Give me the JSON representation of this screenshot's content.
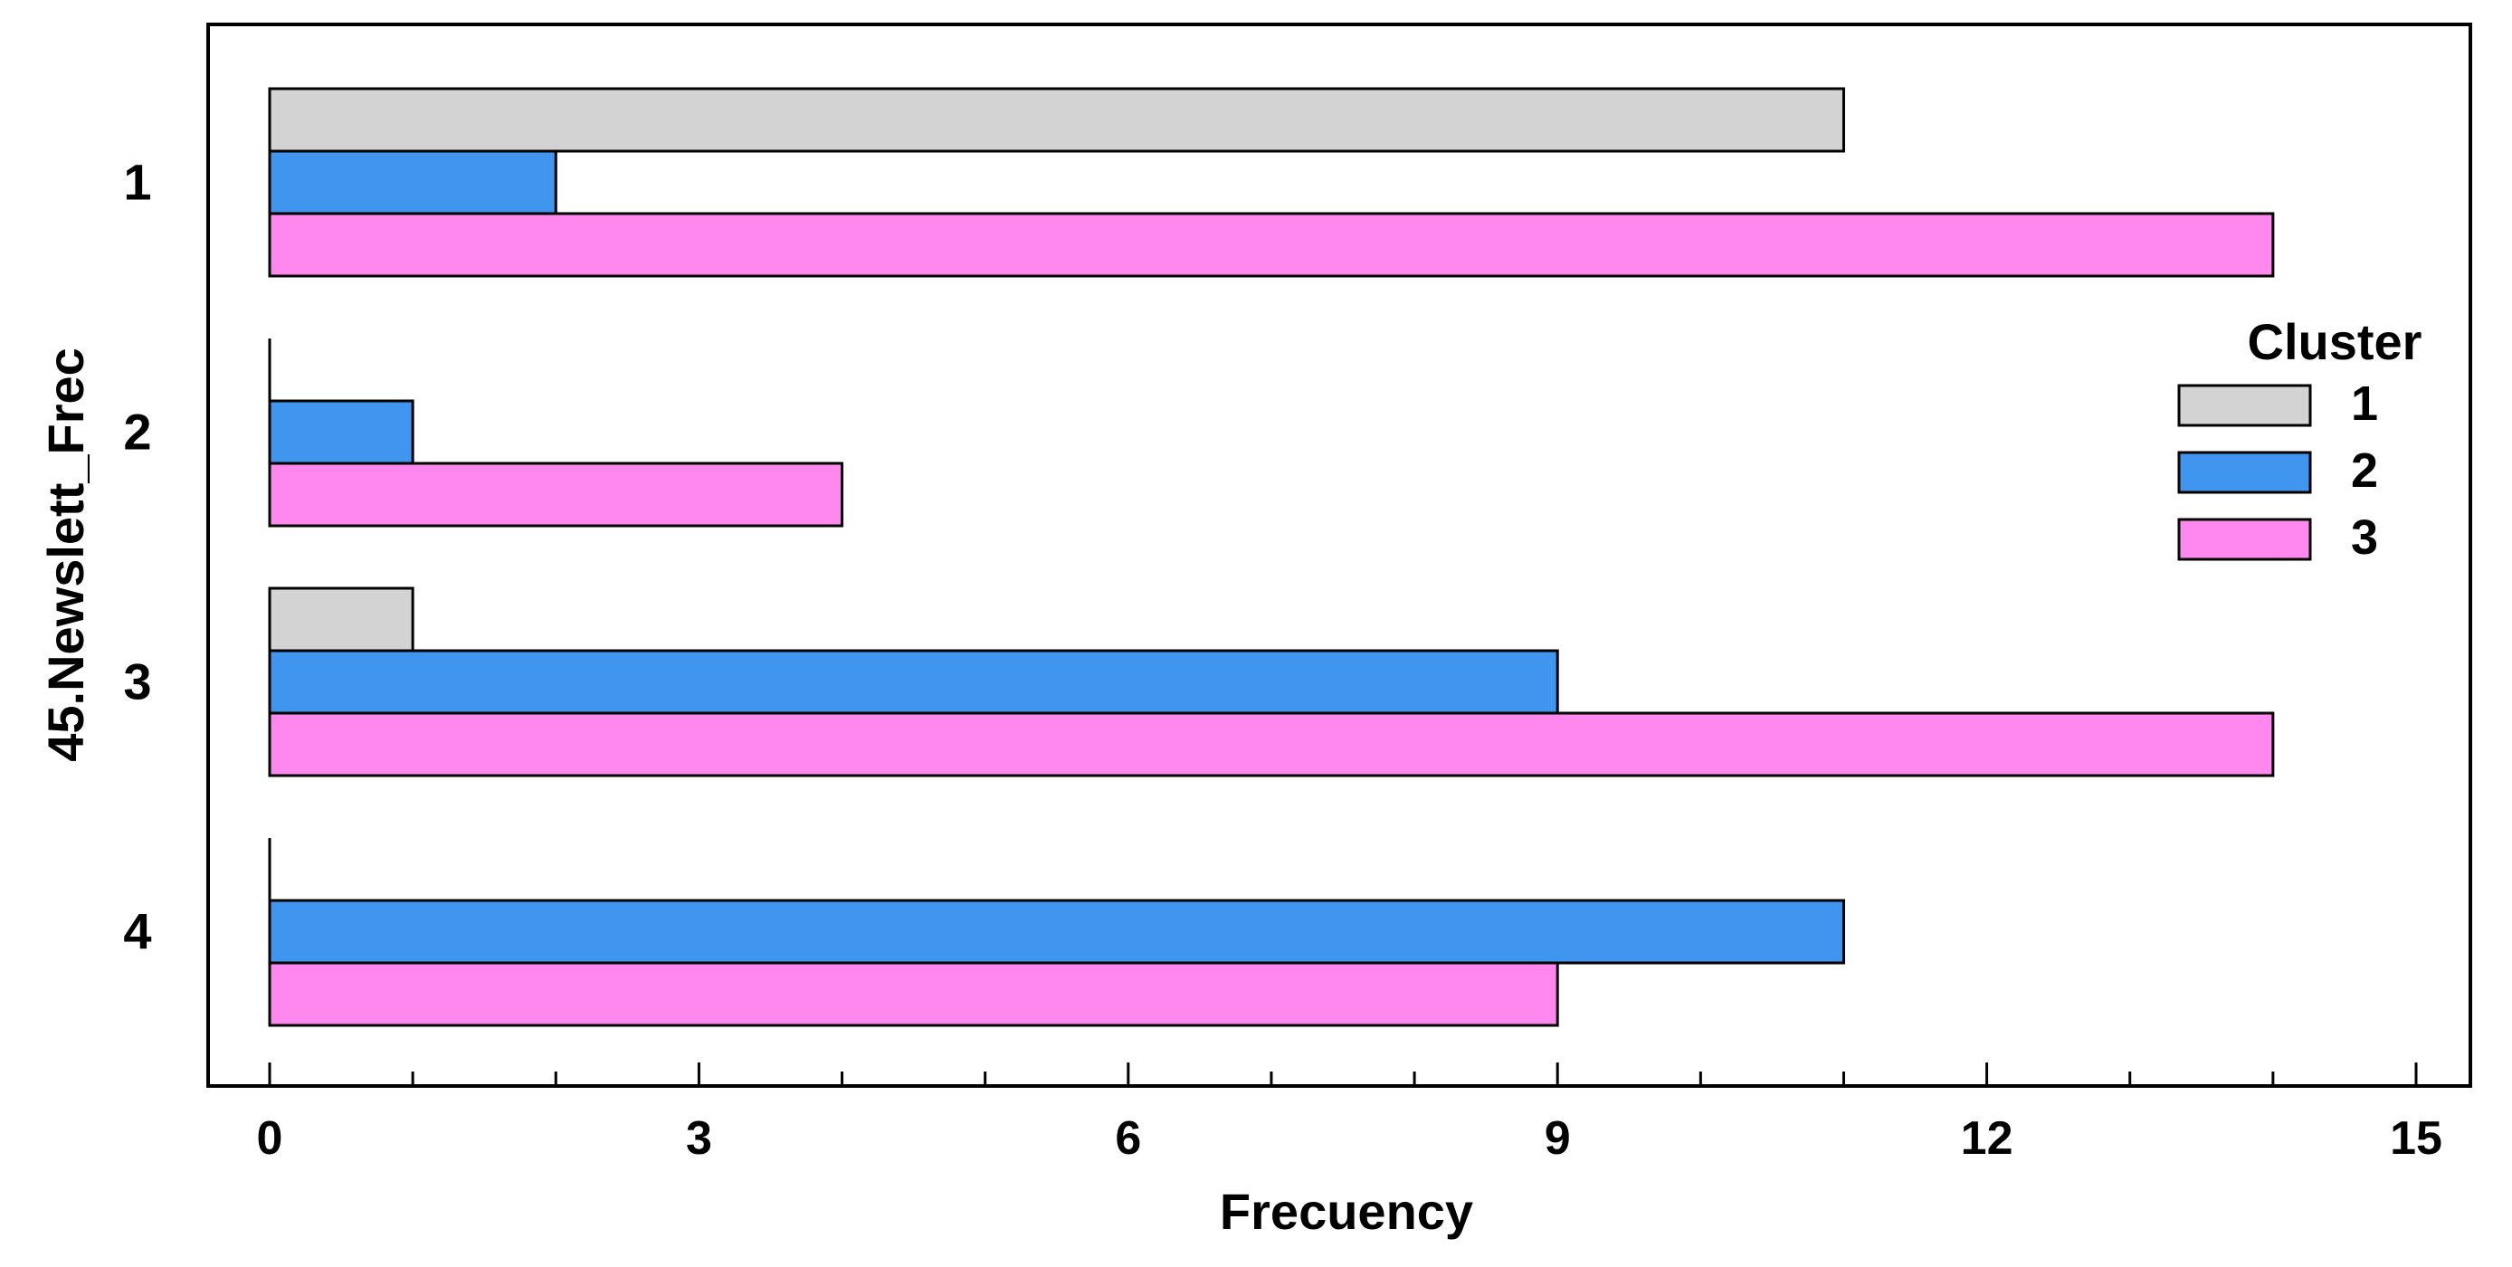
{
  "chart_data": {
    "type": "bar",
    "orientation": "horizontal",
    "title": "",
    "xlabel": "Frecuency",
    "ylabel": "45.Newslett_Frec",
    "xlim": [
      0,
      15
    ],
    "xticks": [
      "0",
      "3",
      "6",
      "9",
      "12",
      "15"
    ],
    "categories": [
      "1",
      "2",
      "3",
      "4"
    ],
    "grid": false,
    "legend": {
      "title": "Cluster",
      "placement": "right"
    },
    "series": [
      {
        "name": "1",
        "color": "#d3d3d3",
        "values": [
          11,
          0,
          1,
          0
        ]
      },
      {
        "name": "2",
        "color": "#4096ee",
        "values": [
          2,
          1,
          9,
          11
        ]
      },
      {
        "name": "3",
        "color": "#ff88ee",
        "values": [
          14,
          4,
          14,
          9
        ]
      }
    ]
  }
}
